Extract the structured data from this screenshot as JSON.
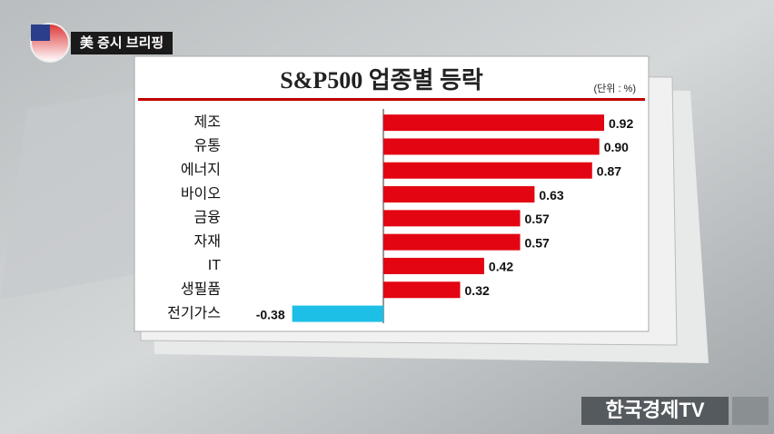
{
  "header": {
    "title": "美 증시 브리핑"
  },
  "logo": "한국경제TV",
  "chart_data": {
    "type": "hbar",
    "title": "S&P500 업종별 등락",
    "unit": "(단위 : %)",
    "categories": [
      "제조",
      "유통",
      "에너지",
      "바이오",
      "금융",
      "자재",
      "IT",
      "생필품",
      "전기가스"
    ],
    "values": [
      0.92,
      0.9,
      0.87,
      0.63,
      0.57,
      0.57,
      0.42,
      0.32,
      -0.38
    ],
    "value_labels": [
      "0.92",
      "0.90",
      "0.87",
      "0.63",
      "0.57",
      "0.57",
      "0.42",
      "0.32",
      "-0.38"
    ],
    "color": "#e30612",
    "negative_color": "#1dbfe6"
  }
}
